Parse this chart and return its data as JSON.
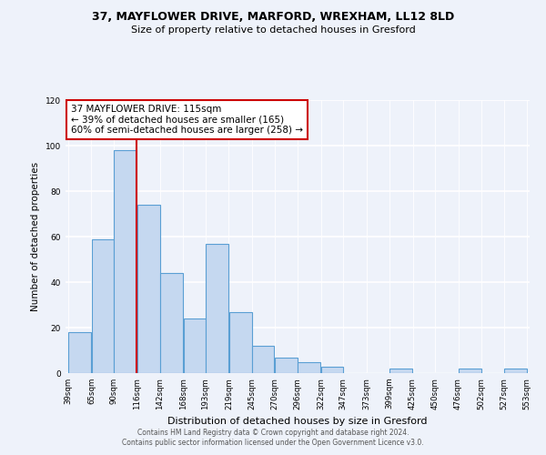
{
  "title1": "37, MAYFLOWER DRIVE, MARFORD, WREXHAM, LL12 8LD",
  "title2": "Size of property relative to detached houses in Gresford",
  "xlabel": "Distribution of detached houses by size in Gresford",
  "ylabel": "Number of detached properties",
  "bar_color": "#c5d8f0",
  "bar_edge_color": "#5a9fd4",
  "vline_x": 116,
  "vline_color": "#cc0000",
  "bin_edges": [
    39,
    65,
    90,
    116,
    142,
    168,
    193,
    219,
    245,
    270,
    296,
    322,
    347,
    373,
    399,
    425,
    450,
    476,
    502,
    527,
    553
  ],
  "bar_heights": [
    18,
    59,
    98,
    74,
    44,
    24,
    57,
    27,
    12,
    7,
    5,
    3,
    0,
    0,
    2,
    0,
    0,
    2,
    0,
    2
  ],
  "tick_labels": [
    "39sqm",
    "65sqm",
    "90sqm",
    "116sqm",
    "142sqm",
    "168sqm",
    "193sqm",
    "219sqm",
    "245sqm",
    "270sqm",
    "296sqm",
    "322sqm",
    "347sqm",
    "373sqm",
    "399sqm",
    "425sqm",
    "450sqm",
    "476sqm",
    "502sqm",
    "527sqm",
    "553sqm"
  ],
  "ylim": [
    0,
    120
  ],
  "yticks": [
    0,
    20,
    40,
    60,
    80,
    100,
    120
  ],
  "annotation_box_text": "37 MAYFLOWER DRIVE: 115sqm\n← 39% of detached houses are smaller (165)\n60% of semi-detached houses are larger (258) →",
  "footer1": "Contains HM Land Registry data © Crown copyright and database right 2024.",
  "footer2": "Contains public sector information licensed under the Open Government Licence v3.0.",
  "bg_color": "#eef2fa",
  "grid_color": "#ffffff"
}
